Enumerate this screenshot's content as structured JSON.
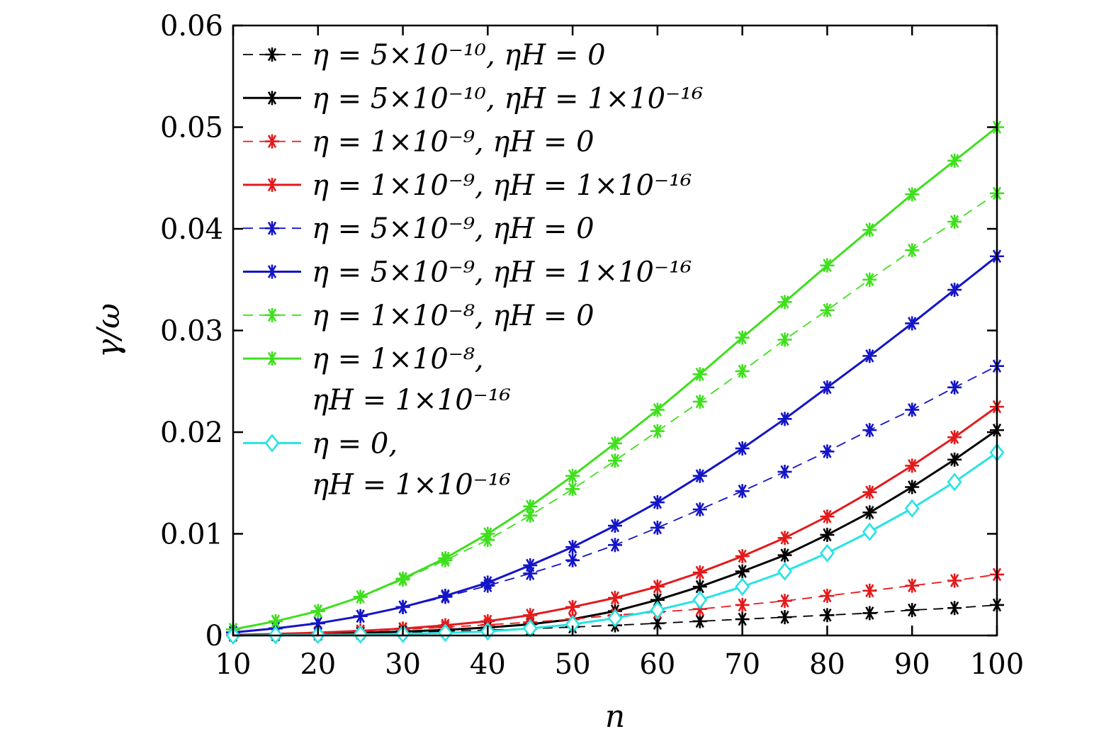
{
  "chart_data": {
    "type": "line",
    "xlabel": "n",
    "ylabel": "γ/ω",
    "xlim": [
      10,
      100
    ],
    "ylim": [
      0,
      0.06
    ],
    "xticks": [
      "10",
      "20",
      "30",
      "40",
      "50",
      "60",
      "70",
      "80",
      "90",
      "100"
    ],
    "yticks": [
      "0",
      "0.01",
      "0.02",
      "0.03",
      "0.04",
      "0.05",
      "0.06"
    ],
    "grid": false,
    "legend_position": "top-left",
    "x": [
      10,
      15,
      20,
      25,
      30,
      35,
      40,
      45,
      50,
      55,
      60,
      65,
      70,
      75,
      80,
      85,
      90,
      95,
      100
    ],
    "series": [
      {
        "name": "η = 5×10⁻¹⁰, ηH = 0",
        "color": "#000000",
        "dash": true,
        "marker": "asterisk",
        "values": [
          3e-05,
          7e-05,
          0.00012,
          0.0002,
          0.0003,
          0.0004,
          0.00053,
          0.00067,
          0.00083,
          0.001,
          0.0012,
          0.0014,
          0.0016,
          0.0018,
          0.002,
          0.0022,
          0.0025,
          0.0027,
          0.003
        ]
      },
      {
        "name": "η = 5×10⁻¹⁰, ηH = 1×10⁻¹⁶",
        "color": "#000000",
        "dash": false,
        "marker": "asterisk",
        "values": [
          3e-05,
          8e-05,
          0.00015,
          0.00025,
          0.00038,
          0.00055,
          0.00078,
          0.0011,
          0.0016,
          0.0024,
          0.0035,
          0.0048,
          0.0063,
          0.0079,
          0.0099,
          0.0121,
          0.0146,
          0.0173,
          0.0202
        ]
      },
      {
        "name": "η = 1×10⁻⁹, ηH = 0",
        "color": "#e31a1c",
        "dash": true,
        "marker": "asterisk",
        "values": [
          6e-05,
          0.00014,
          0.00024,
          0.0004,
          0.0006,
          0.0008,
          0.00105,
          0.0013,
          0.0016,
          0.002,
          0.0023,
          0.0026,
          0.003,
          0.0034,
          0.0039,
          0.0044,
          0.0049,
          0.0054,
          0.006
        ]
      },
      {
        "name": "η = 1×10⁻⁹, ηH = 1×10⁻¹⁶",
        "color": "#e31a1c",
        "dash": false,
        "marker": "asterisk",
        "values": [
          6e-05,
          0.00015,
          0.00028,
          0.00045,
          0.00068,
          0.001,
          0.0014,
          0.002,
          0.0028,
          0.0037,
          0.0048,
          0.0062,
          0.0078,
          0.0096,
          0.0117,
          0.0141,
          0.0167,
          0.0195,
          0.0225
        ]
      },
      {
        "name": "η = 5×10⁻⁹, ηH = 0",
        "color": "#1414c8",
        "dash": true,
        "marker": "asterisk",
        "values": [
          0.0003,
          0.0007,
          0.0012,
          0.0019,
          0.0028,
          0.0038,
          0.0049,
          0.0061,
          0.0074,
          0.0089,
          0.0106,
          0.0124,
          0.0142,
          0.0161,
          0.0181,
          0.0202,
          0.0222,
          0.0244,
          0.0265
        ]
      },
      {
        "name": "η = 5×10⁻⁹, ηH = 1×10⁻¹⁶",
        "color": "#1414c8",
        "dash": false,
        "marker": "asterisk",
        "values": [
          0.0003,
          0.0007,
          0.0012,
          0.0019,
          0.0028,
          0.0039,
          0.0052,
          0.0069,
          0.0087,
          0.0108,
          0.0131,
          0.0157,
          0.0184,
          0.0213,
          0.0244,
          0.0275,
          0.0307,
          0.034,
          0.0373
        ]
      },
      {
        "name": "η = 1×10⁻⁸, ηH = 0",
        "color": "#3ee01c",
        "dash": true,
        "marker": "asterisk",
        "values": [
          0.0006,
          0.0014,
          0.0024,
          0.0038,
          0.0055,
          0.0074,
          0.0094,
          0.0118,
          0.0144,
          0.0172,
          0.0201,
          0.023,
          0.026,
          0.0291,
          0.032,
          0.035,
          0.0379,
          0.0407,
          0.0435
        ]
      },
      {
        "name": "η = 1×10⁻⁸, ηH = 1×10⁻¹⁶",
        "color": "#3ee01c",
        "dash": false,
        "marker": "asterisk",
        "values": [
          0.0006,
          0.0014,
          0.0024,
          0.0038,
          0.0056,
          0.0076,
          0.01,
          0.0127,
          0.0157,
          0.0189,
          0.0222,
          0.0257,
          0.0293,
          0.0328,
          0.0364,
          0.0399,
          0.0434,
          0.0467,
          0.05
        ]
      },
      {
        "name": "η = 0, ηH = 1×10⁻¹⁶",
        "color": "#27e3e3",
        "dash": false,
        "marker": "diamond",
        "values": [
          0,
          3e-05,
          6e-05,
          0.0001,
          0.00016,
          0.00026,
          0.0004,
          0.0007,
          0.0011,
          0.0017,
          0.0025,
          0.0035,
          0.0048,
          0.0063,
          0.0081,
          0.0102,
          0.0125,
          0.0151,
          0.018
        ]
      }
    ],
    "legend": [
      {
        "lines": [
          "η = 5×10⁻¹⁰, ηH = 0"
        ]
      },
      {
        "lines": [
          "η = 5×10⁻¹⁰, ηH = 1×10⁻¹⁶"
        ]
      },
      {
        "lines": [
          "η = 1×10⁻⁹, ηH = 0"
        ]
      },
      {
        "lines": [
          "η = 1×10⁻⁹, ηH = 1×10⁻¹⁶"
        ]
      },
      {
        "lines": [
          "η = 5×10⁻⁹, ηH = 0"
        ]
      },
      {
        "lines": [
          "η = 5×10⁻⁹, ηH = 1×10⁻¹⁶"
        ]
      },
      {
        "lines": [
          "η = 1×10⁻⁸, ηH = 0"
        ]
      },
      {
        "lines": [
          "η = 1×10⁻⁸,",
          "ηH = 1×10⁻¹⁶"
        ]
      },
      {
        "lines": [
          "η = 0,",
          "ηH = 1×10⁻¹⁶"
        ]
      }
    ]
  }
}
